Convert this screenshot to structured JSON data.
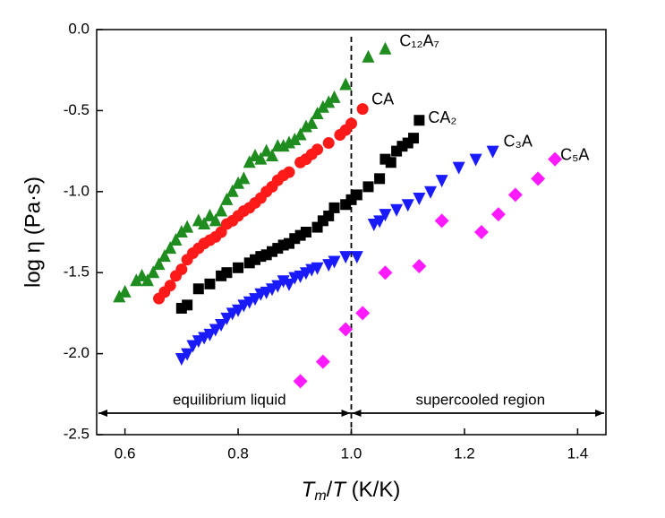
{
  "chart_data": {
    "type": "scatter",
    "x_label_parts": [
      "T",
      "m",
      "/",
      "T",
      " (K/K)"
    ],
    "y_label": "log η (Pa·s)",
    "xlim": [
      0.55,
      1.45
    ],
    "ylim": [
      -2.5,
      0
    ],
    "xticks": [
      0.6,
      0.8,
      {
        "value": 1,
        "label": "1.0"
      },
      1.2,
      1.4
    ],
    "yticks": [
      {
        "value": 0,
        "label": "0.0"
      },
      -0.5,
      {
        "value": -1,
        "label": "-1.0"
      },
      -1.5,
      {
        "value": -2,
        "label": "-2.0"
      },
      -2.5
    ],
    "boundary_x": 1.0,
    "region_labels": [
      "equilibrium liquid",
      "supercooled region"
    ],
    "series": [
      {
        "name": "C₁₂A₇",
        "color": "#1e8c1e",
        "marker": "triangle-up",
        "x": [
          0.59,
          0.6,
          0.62,
          0.63,
          0.64,
          0.65,
          0.66,
          0.67,
          0.68,
          0.69,
          0.7,
          0.71,
          0.73,
          0.74,
          0.75,
          0.76,
          0.77,
          0.78,
          0.79,
          0.8,
          0.81,
          0.82,
          0.83,
          0.84,
          0.85,
          0.86,
          0.87,
          0.88,
          0.89,
          0.9,
          0.91,
          0.92,
          0.93,
          0.94,
          0.95,
          0.96,
          0.97,
          0.99,
          1.03,
          1.06
        ],
        "values": [
          -1.65,
          -1.62,
          -1.55,
          -1.52,
          -1.55,
          -1.5,
          -1.45,
          -1.4,
          -1.35,
          -1.3,
          -1.25,
          -1.22,
          -1.18,
          -1.2,
          -1.15,
          -1.18,
          -1.12,
          -1.05,
          -1.0,
          -0.95,
          -0.92,
          -0.82,
          -0.78,
          -0.8,
          -0.75,
          -0.78,
          -0.72,
          -0.72,
          -0.7,
          -0.68,
          -0.65,
          -0.6,
          -0.58,
          -0.52,
          -0.48,
          -0.45,
          -0.42,
          -0.34,
          -0.17,
          -0.12
        ]
      },
      {
        "name": "CA",
        "color": "#ff1a1a",
        "marker": "circle",
        "x": [
          0.66,
          0.67,
          0.68,
          0.69,
          0.7,
          0.71,
          0.72,
          0.73,
          0.74,
          0.75,
          0.76,
          0.77,
          0.78,
          0.79,
          0.8,
          0.81,
          0.82,
          0.83,
          0.84,
          0.85,
          0.86,
          0.87,
          0.88,
          0.89,
          0.91,
          0.92,
          0.93,
          0.94,
          0.96,
          0.98,
          0.99,
          1.0,
          1.02
        ],
        "values": [
          -1.66,
          -1.62,
          -1.58,
          -1.52,
          -1.48,
          -1.42,
          -1.38,
          -1.35,
          -1.32,
          -1.3,
          -1.28,
          -1.25,
          -1.2,
          -1.18,
          -1.15,
          -1.12,
          -1.1,
          -1.07,
          -1.04,
          -1.0,
          -0.97,
          -0.93,
          -0.9,
          -0.88,
          -0.82,
          -0.8,
          -0.77,
          -0.74,
          -0.7,
          -0.65,
          -0.62,
          -0.58,
          -0.49
        ]
      },
      {
        "name": "CA₂",
        "color": "#000000",
        "marker": "square",
        "x": [
          0.7,
          0.71,
          0.73,
          0.75,
          0.77,
          0.78,
          0.8,
          0.82,
          0.83,
          0.84,
          0.85,
          0.86,
          0.87,
          0.88,
          0.89,
          0.9,
          0.91,
          0.92,
          0.94,
          0.95,
          0.96,
          0.97,
          0.99,
          1.0,
          1.01,
          1.03,
          1.05,
          1.06,
          1.07,
          1.08,
          1.09,
          1.1,
          1.11,
          1.12
        ],
        "values": [
          -1.72,
          -1.7,
          -1.6,
          -1.57,
          -1.52,
          -1.5,
          -1.47,
          -1.44,
          -1.42,
          -1.4,
          -1.39,
          -1.37,
          -1.35,
          -1.33,
          -1.32,
          -1.29,
          -1.27,
          -1.25,
          -1.22,
          -1.18,
          -1.15,
          -1.1,
          -1.08,
          -1.05,
          -1.02,
          -0.97,
          -0.92,
          -0.8,
          -0.82,
          -0.75,
          -0.72,
          -0.7,
          -0.67,
          -0.56
        ]
      },
      {
        "name": "C₃A",
        "color": "#1a1aff",
        "marker": "triangle-down",
        "x": [
          0.7,
          0.71,
          0.72,
          0.73,
          0.74,
          0.75,
          0.76,
          0.77,
          0.78,
          0.79,
          0.8,
          0.81,
          0.82,
          0.83,
          0.84,
          0.85,
          0.86,
          0.87,
          0.88,
          0.89,
          0.9,
          0.91,
          0.92,
          0.93,
          0.94,
          0.96,
          0.97,
          0.99,
          1.01,
          1.04,
          1.05,
          1.06,
          1.08,
          1.1,
          1.12,
          1.14,
          1.16,
          1.19,
          1.22,
          1.25
        ],
        "values": [
          -2.03,
          -2.0,
          -1.95,
          -1.92,
          -1.9,
          -1.88,
          -1.85,
          -1.82,
          -1.78,
          -1.75,
          -1.73,
          -1.7,
          -1.68,
          -1.66,
          -1.63,
          -1.62,
          -1.6,
          -1.58,
          -1.55,
          -1.57,
          -1.53,
          -1.52,
          -1.5,
          -1.48,
          -1.47,
          -1.45,
          -1.43,
          -1.4,
          -1.4,
          -1.2,
          -1.18,
          -1.14,
          -1.11,
          -1.08,
          -1.04,
          -1.0,
          -0.93,
          -0.85,
          -0.8,
          -0.75
        ]
      },
      {
        "name": "C₅A",
        "color": "#ff1aff",
        "marker": "diamond",
        "x": [
          0.91,
          0.95,
          0.99,
          1.02,
          1.06,
          1.12,
          1.16,
          1.23,
          1.26,
          1.29,
          1.33,
          1.36
        ],
        "values": [
          -2.17,
          -2.05,
          -1.85,
          -1.75,
          -1.5,
          -1.46,
          -1.18,
          -1.25,
          -1.14,
          -1.02,
          -0.92,
          -0.8
        ]
      }
    ]
  }
}
